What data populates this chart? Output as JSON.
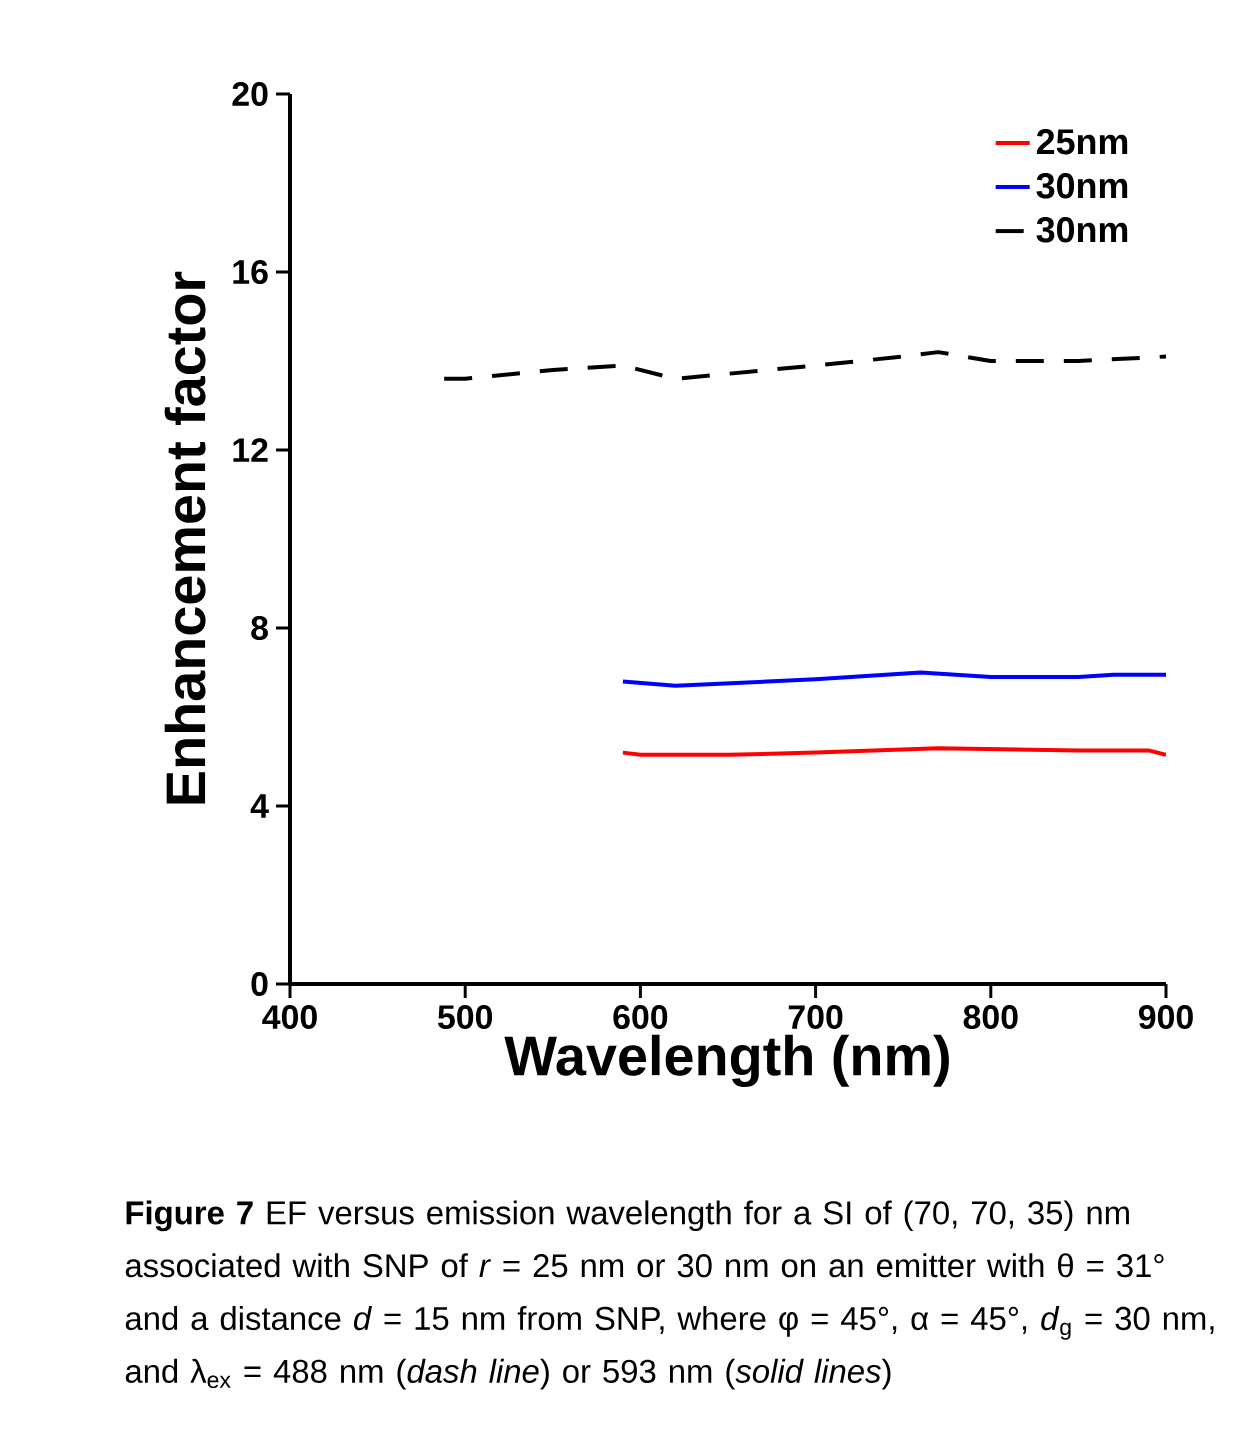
{
  "chart_data": {
    "type": "line",
    "xlabel": "Wavelength (nm)",
    "ylabel": "Enhancement factor",
    "xlim": [
      400,
      900
    ],
    "ylim": [
      0,
      20
    ],
    "xticks": [
      400,
      500,
      600,
      700,
      800,
      900
    ],
    "yticks": [
      0,
      4,
      8,
      12,
      16,
      20
    ],
    "legend": "top right",
    "grid": false,
    "series": [
      {
        "name": "25nm",
        "color": "#ff0000",
        "line_style": "solid",
        "x": [
          590,
          600,
          650,
          700,
          770,
          850,
          890,
          900
        ],
        "values": [
          5.2,
          5.15,
          5.15,
          5.2,
          5.3,
          5.25,
          5.25,
          5.15
        ]
      },
      {
        "name": "30nm",
        "color": "#0000ff",
        "line_style": "solid",
        "x": [
          590,
          620,
          700,
          760,
          800,
          850,
          870,
          900
        ],
        "values": [
          6.8,
          6.7,
          6.85,
          7.0,
          6.9,
          6.9,
          6.95,
          6.95
        ]
      },
      {
        "name": "30nm",
        "color": "#000000",
        "line_style": "dashed",
        "x": [
          488,
          500,
          550,
          590,
          620,
          700,
          750,
          770,
          800,
          850,
          900
        ],
        "values": [
          13.6,
          13.6,
          13.8,
          13.9,
          13.6,
          13.9,
          14.1,
          14.2,
          14.0,
          14.0,
          14.1
        ]
      }
    ],
    "annotations": [
      "**Figure 7** EF versus emission wavelength for a SI of (70, 70, 35) nm associated with SNP of *r* = 25 nm or 30 nm on an emitter with θ = 31° and a distance *d* = 15 nm from SNP, where φ = 45°, α = 45°, *d*$_{g}$ = 30 nm, and λ$_{ex}$ = 488 nm (*dash line*) or 593 nm (*solid lines*)"
    ]
  }
}
